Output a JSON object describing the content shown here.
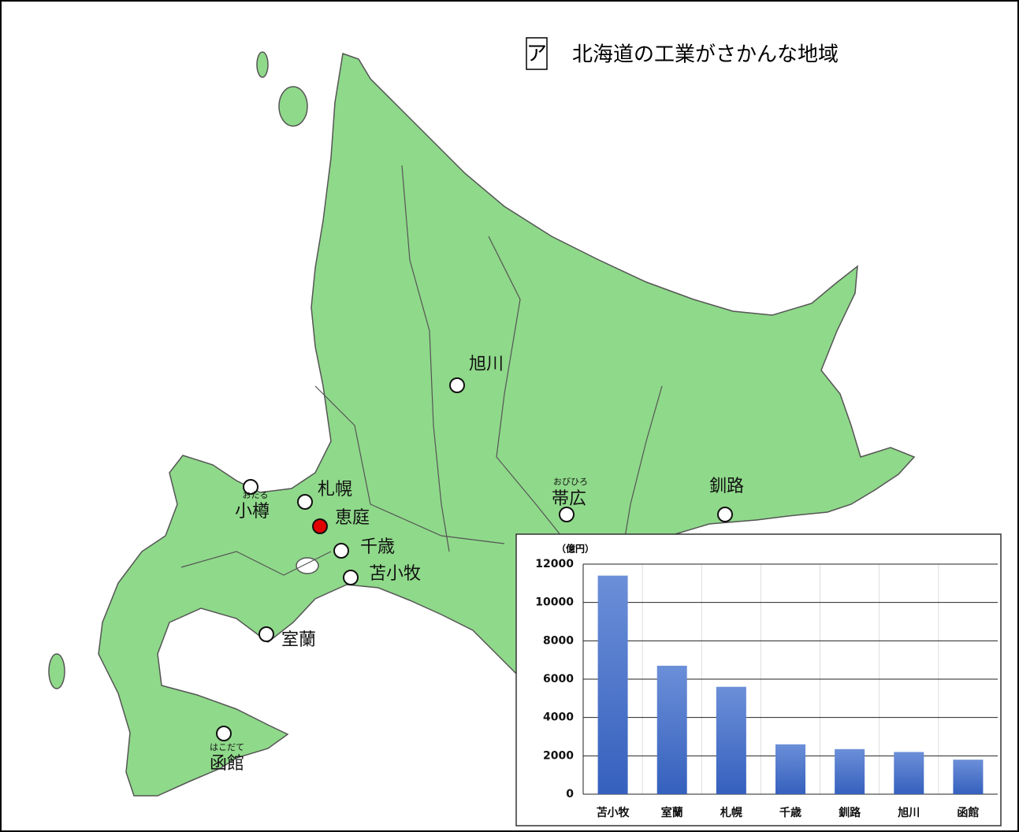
{
  "title": {
    "mark": "ア",
    "text": "北海道の工業がさかんな地域"
  },
  "cities": [
    {
      "name": "小樽",
      "ruby": "おたる"
    },
    {
      "name": "札幌"
    },
    {
      "name": "恵庭"
    },
    {
      "name": "千歳"
    },
    {
      "name": "苫小牧"
    },
    {
      "name": "室蘭"
    },
    {
      "name": "函館",
      "ruby": "はこだて"
    },
    {
      "name": "旭川"
    },
    {
      "name": "帯広",
      "ruby": "おびひろ"
    },
    {
      "name": "釧路"
    }
  ],
  "chart_data": {
    "type": "bar",
    "unit_label": "（億円）",
    "categories": [
      "苫小牧",
      "室蘭",
      "札幌",
      "千歳",
      "釧路",
      "旭川",
      "函館"
    ],
    "values": [
      11400,
      6700,
      5600,
      2600,
      2350,
      2200,
      1800
    ],
    "color": "#4a72c8",
    "ylim": [
      0,
      12000
    ],
    "yticks": [
      0,
      2000,
      4000,
      6000,
      8000,
      10000,
      12000
    ],
    "grid": true
  }
}
